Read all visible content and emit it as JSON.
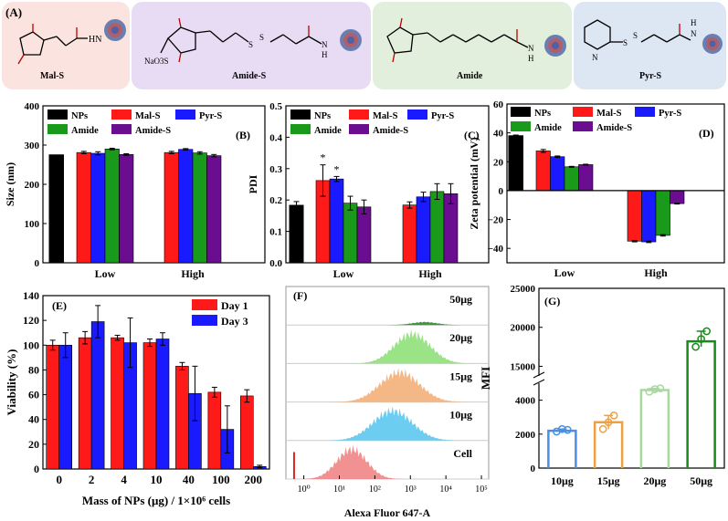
{
  "colors": {
    "NPs": "#000000",
    "Mal-S": "#ff1a1a",
    "Pyr-S": "#1a1aff",
    "Amide": "#1a9a1a",
    "Amide-S": "#6a0d91",
    "day1": "#ff1a1a",
    "day3": "#1a1aff",
    "boxA": "#fbe3e0",
    "boxB": "#e8dcf4",
    "boxC": "#e2efdc",
    "boxD": "#dde6f3",
    "histCell": "#f08585",
    "hist10": "#5cc8ee",
    "hist15": "#f3b07a",
    "hist20": "#8fe07a",
    "hist50": "#2f8a2f",
    "mfi10": "#4a90e2",
    "mfi15": "#f0a040",
    "mfi20": "#a8d8a0",
    "mfi50": "#1a8a1a"
  },
  "panelA": {
    "label": "(A)",
    "structures": [
      {
        "name": "Mal-S",
        "groups": [
          "HN"
        ]
      },
      {
        "name": "Amide-S",
        "groups": [
          "NaO3S",
          "S",
          "S",
          "N",
          "H"
        ]
      },
      {
        "name": "Amide",
        "groups": [
          "N",
          "H"
        ]
      },
      {
        "name": "Pyr-S",
        "groups": [
          "N",
          "S",
          "S",
          "H",
          "N"
        ]
      }
    ]
  },
  "chart_data": [
    {
      "panel": "(B)",
      "type": "bar",
      "ylabel": "Size (nm)",
      "ylim": [
        0,
        400
      ],
      "yticks": [
        0,
        100,
        200,
        300,
        400
      ],
      "groups": [
        "Low",
        "High"
      ],
      "legend": [
        "NPs",
        "Mal-S",
        "Pyr-S",
        "Amide",
        "Amide-S"
      ],
      "control": {
        "name": "NPs",
        "value": 275,
        "err": 0
      },
      "series": [
        {
          "name": "Mal-S",
          "values": [
            281,
            281
          ],
          "err": [
            3,
            3
          ]
        },
        {
          "name": "Pyr-S",
          "values": [
            279,
            289
          ],
          "err": [
            4,
            2
          ]
        },
        {
          "name": "Amide",
          "values": [
            290,
            280
          ],
          "err": [
            2,
            3
          ]
        },
        {
          "name": "Amide-S",
          "values": [
            276,
            273
          ],
          "err": [
            2,
            3
          ]
        }
      ]
    },
    {
      "panel": "(C)",
      "type": "bar",
      "ylabel": "PDI",
      "ylim": [
        0.0,
        0.5
      ],
      "yticks": [
        "0.0",
        "0.1",
        "0.2",
        "0.3",
        "0.4",
        "0.5"
      ],
      "groups": [
        "Low",
        "High"
      ],
      "legend": [
        "NPs",
        "Mal-S",
        "Pyr-S",
        "Amide",
        "Amide-S"
      ],
      "control": {
        "name": "NPs",
        "value": 0.183,
        "err": 0.012
      },
      "series": [
        {
          "name": "Mal-S",
          "values": [
            0.262,
            0.184
          ],
          "err": [
            0.05,
            0.01
          ]
        },
        {
          "name": "Pyr-S",
          "values": [
            0.267,
            0.21
          ],
          "err": [
            0.008,
            0.015
          ]
        },
        {
          "name": "Amide",
          "values": [
            0.19,
            0.227
          ],
          "err": [
            0.022,
            0.025
          ]
        },
        {
          "name": "Amide-S",
          "values": [
            0.178,
            0.22
          ],
          "err": [
            0.022,
            0.032
          ]
        }
      ],
      "annotations": [
        "*",
        "*"
      ]
    },
    {
      "panel": "(D)",
      "type": "bar",
      "ylabel": "Zeta potential (mV)",
      "ylim": [
        -50,
        60
      ],
      "yticks": [
        "60",
        "40",
        "20",
        "0",
        "−20",
        "−40"
      ],
      "groups": [
        "Low",
        "High"
      ],
      "legend": [
        "NPs",
        "Mal-S",
        "Pyr-S",
        "Amide",
        "Amide-S"
      ],
      "control": {
        "name": "NPs",
        "value": 38,
        "err": 0.5
      },
      "series": [
        {
          "name": "Mal-S",
          "values": [
            27.5,
            -35
          ],
          "err": [
            1,
            0.5
          ]
        },
        {
          "name": "Pyr-S",
          "values": [
            23.5,
            -35.5
          ],
          "err": [
            0.5,
            0.5
          ]
        },
        {
          "name": "Amide",
          "values": [
            16.5,
            -31
          ],
          "err": [
            0.3,
            0.5
          ]
        },
        {
          "name": "Amide-S",
          "values": [
            18,
            -9
          ],
          "err": [
            0.3,
            0.3
          ]
        }
      ]
    },
    {
      "panel": "(E)",
      "type": "bar",
      "ylabel": "Viability (%)",
      "xlabel": "Mass of NPs (μg) / 1×10⁶ cells",
      "ylim": [
        0,
        140
      ],
      "yticks": [
        0,
        20,
        40,
        60,
        80,
        100,
        120,
        140
      ],
      "categories": [
        "0",
        "2",
        "4",
        "10",
        "40",
        "100",
        "200"
      ],
      "series": [
        {
          "name": "Day 1",
          "values": [
            100,
            106,
            106,
            102,
            83,
            62,
            59
          ],
          "err": [
            4,
            5,
            2,
            3,
            3,
            4,
            5
          ]
        },
        {
          "name": "Day 3",
          "values": [
            100,
            119,
            102,
            105,
            61,
            32,
            2
          ],
          "err": [
            10,
            13,
            20,
            5,
            22,
            19,
            1
          ]
        }
      ]
    },
    {
      "panel": "(F)",
      "type": "area",
      "xlabel": "Alexa Fluor 647-A",
      "xscale": "log",
      "xticks": [
        "10⁰",
        "10¹",
        "10²",
        "10³",
        "10⁴",
        "10⁵"
      ],
      "series": [
        {
          "name": "50μg",
          "peak_log10": 3.4,
          "width": 0.35,
          "height": 0.1
        },
        {
          "name": "20μg",
          "peak_log10": 3.05,
          "width": 0.5,
          "height": 1.0
        },
        {
          "name": "15μg",
          "peak_log10": 2.7,
          "width": 0.55,
          "height": 1.0
        },
        {
          "name": "10μg",
          "peak_log10": 2.5,
          "width": 0.55,
          "height": 1.0
        },
        {
          "name": "Cell",
          "peak_log10": 1.35,
          "width": 0.42,
          "height": 1.0
        }
      ]
    },
    {
      "panel": "(G)",
      "type": "bar",
      "ylabel": "MFI",
      "yscale": "broken",
      "yticks_lower": [
        0,
        2000,
        4000
      ],
      "yticks_upper": [
        15000,
        20000,
        25000
      ],
      "categories": [
        "10μg",
        "15μg",
        "20μg",
        "50μg"
      ],
      "values": [
        2200,
        2700,
        4600,
        18200
      ],
      "points": [
        [
          2150,
          2300,
          2250
        ],
        [
          2300,
          2700,
          3100
        ],
        [
          4500,
          4650,
          4700
        ],
        [
          17500,
          18500,
          19500
        ]
      ]
    }
  ]
}
